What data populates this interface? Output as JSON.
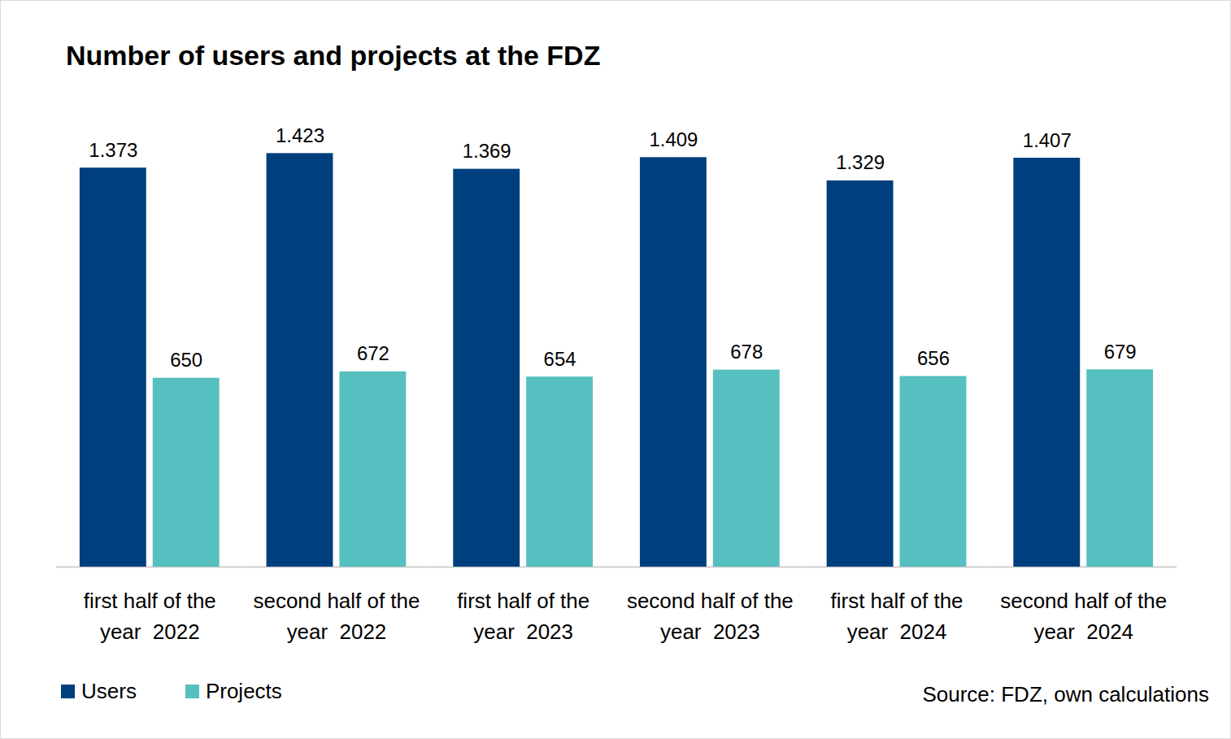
{
  "chart_data": {
    "type": "bar",
    "title": "Number of users and projects at the FDZ",
    "caption": "Source: FDZ, own calculations",
    "categories": [
      "first half of the year  2022",
      "second half of the year  2022",
      "first half of the year  2023",
      "second half of the year  2023",
      "first half of the year  2024",
      "second half of the year  2024"
    ],
    "series": [
      {
        "name": "Users",
        "color": "#003f7d",
        "values": [
          1373,
          1423,
          1369,
          1409,
          1329,
          1407
        ],
        "value_labels": [
          "1.373",
          "1.423",
          "1.369",
          "1.409",
          "1.329",
          "1.407"
        ]
      },
      {
        "name": "Projects",
        "color": "#56bfc0",
        "values": [
          650,
          672,
          654,
          678,
          656,
          679
        ]
      }
    ],
    "ylim": [
      0,
      1500
    ],
    "data_labels": true,
    "tick_labels": "x",
    "grid": false,
    "legend": "bottom-left"
  }
}
